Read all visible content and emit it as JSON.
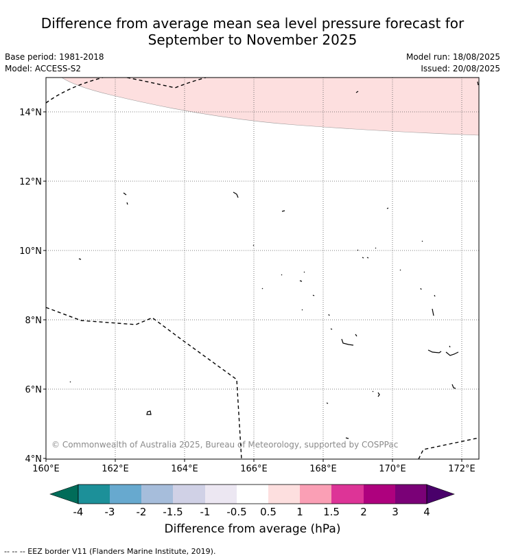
{
  "title_line1": "Difference from average mean sea level pressure forecast for",
  "title_line2": "September to November 2025",
  "meta": {
    "base_period": "Base period: 1981-2018",
    "model": "Model: ACCESS-S2",
    "model_run": "Model run: 18/08/2025",
    "issued": "Issued: 20/08/2025"
  },
  "map": {
    "lon_range": [
      160,
      172.5
    ],
    "lat_range": [
      4,
      15
    ],
    "lon_ticks": [
      "160°E",
      "162°E",
      "164°E",
      "166°E",
      "168°E",
      "170°E",
      "172°E"
    ],
    "lat_ticks": [
      "4°N",
      "6°N",
      "8°N",
      "10°N",
      "12°N",
      "14°N"
    ],
    "shaded_region_category": "0.5 to 1",
    "shaded_color": "#fddfdf",
    "copyright": "© Commonwealth of Australia 2025, Bureau of Meteorology, supported by COSPPac"
  },
  "colorbar": {
    "title": "Difference from average (hPa)",
    "tick_labels": [
      "-4",
      "-3",
      "-2",
      "-1.5",
      "-1",
      "-0.5",
      "0.5",
      "1",
      "1.5",
      "2",
      "3",
      "4"
    ],
    "colors": [
      "#016c59",
      "#1c9099",
      "#67a9cf",
      "#a6bddb",
      "#d0d1e6",
      "#ece7f2",
      "#ffffff",
      "#fddfdf",
      "#fa9fb5",
      "#dd3497",
      "#ae017e",
      "#7a0177",
      "#49006a"
    ]
  },
  "footer": "--  --  -- EEZ border V11 (Flanders Marine Institute, 2019)."
}
